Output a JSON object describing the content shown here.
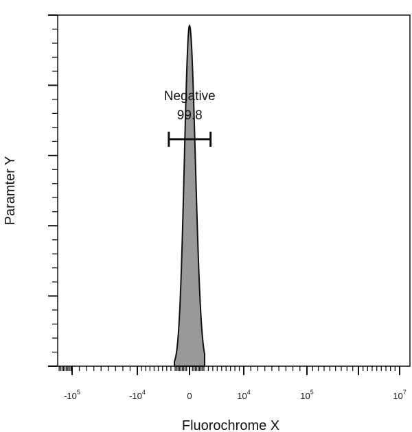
{
  "chart_data": {
    "type": "histogram",
    "title": "",
    "xlabel": "Fluorochrome X",
    "ylabel": "Paramter Y",
    "x_scale": "biexponential",
    "x_tick_labels": [
      {
        "value": -100000,
        "base": "-10",
        "exp": "5"
      },
      {
        "value": -10000,
        "base": "-10",
        "exp": "4"
      },
      {
        "value": 0,
        "base": "0",
        "exp": ""
      },
      {
        "value": 10000,
        "base": "10",
        "exp": "4"
      },
      {
        "value": 100000,
        "base": "10",
        "exp": "5"
      },
      {
        "value": 10000000,
        "base": "10",
        "exp": "7"
      }
    ],
    "y_tick_labels": [],
    "grid": false,
    "series": [
      {
        "fill_color": "#999999",
        "line_color": "#111111",
        "peak_x": 0,
        "peak_relative_height": 0.97,
        "approx_range": [
          -1800,
          1800
        ]
      }
    ],
    "gates": [
      {
        "name": "Negative",
        "value_label": "99.8",
        "x_range": [
          -2500,
          2500
        ]
      }
    ]
  }
}
